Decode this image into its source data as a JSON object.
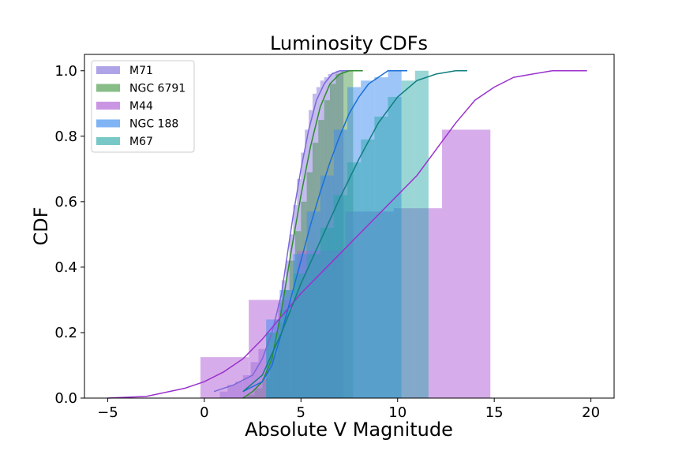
{
  "chart_data": {
    "type": "histogram",
    "title": "Luminosity CDFs",
    "xlabel": "Absolute V Magnitude",
    "ylabel": "CDF",
    "xlim": [
      -6.2,
      21.2
    ],
    "ylim": [
      0.0,
      1.05
    ],
    "xticks": [
      -5,
      0,
      5,
      10,
      15,
      20
    ],
    "yticks": [
      0.0,
      0.2,
      0.4,
      0.6,
      0.8,
      1.0
    ],
    "xtick_labels": [
      "−5",
      "0",
      "5",
      "10",
      "15",
      "20"
    ],
    "ytick_labels": [
      "0.0",
      "0.2",
      "0.4",
      "0.6",
      "0.8",
      "1.0"
    ],
    "grid": false,
    "legend_position": "top-left",
    "series": [
      {
        "name": "M71",
        "color": "#7b68d8",
        "bar_opacity": 0.45,
        "bin_edges": [
          0.8,
          1.2,
          1.6,
          2.0,
          2.4,
          2.8,
          3.2,
          3.6,
          3.8,
          4.0,
          4.2,
          4.4,
          4.6,
          4.8,
          5.0,
          5.2,
          5.4,
          5.6,
          5.8,
          6.0,
          6.2,
          6.4,
          6.6,
          6.8,
          7.0,
          7.2
        ],
        "cdf": [
          0.02,
          0.04,
          0.05,
          0.07,
          0.11,
          0.15,
          0.2,
          0.24,
          0.29,
          0.36,
          0.42,
          0.5,
          0.59,
          0.67,
          0.75,
          0.82,
          0.88,
          0.93,
          0.95,
          0.97,
          0.98,
          0.99,
          0.995,
          1.0,
          1.0
        ],
        "curve_x": [
          0.5,
          1.5,
          2.5,
          3.0,
          3.5,
          4.0,
          4.3,
          4.6,
          5.0,
          5.4,
          5.8,
          6.2,
          6.6,
          7.0,
          7.4,
          8.2
        ],
        "curve_y": [
          0.02,
          0.04,
          0.07,
          0.12,
          0.2,
          0.32,
          0.44,
          0.56,
          0.7,
          0.82,
          0.91,
          0.96,
          0.99,
          1.0,
          1.0,
          1.0
        ]
      },
      {
        "name": "NGC 6791",
        "color": "#2e8b2e",
        "bar_opacity": 0.42,
        "bin_edges": [
          2.2,
          2.6,
          3.0,
          3.4,
          3.8,
          4.1,
          4.4,
          4.7,
          5.0,
          5.3,
          5.6,
          5.9,
          6.2,
          6.5,
          6.8,
          7.1,
          7.4,
          7.7
        ],
        "cdf": [
          0.01,
          0.03,
          0.06,
          0.13,
          0.23,
          0.33,
          0.42,
          0.51,
          0.6,
          0.69,
          0.78,
          0.85,
          0.91,
          0.96,
          0.99,
          1.0,
          1.0
        ],
        "curve_x": [
          2.0,
          2.5,
          3.0,
          3.5,
          4.0,
          4.5,
          5.0,
          5.5,
          6.0,
          6.5,
          7.0,
          7.5,
          8.0,
          8.2
        ],
        "curve_y": [
          0.0,
          0.02,
          0.05,
          0.12,
          0.27,
          0.45,
          0.62,
          0.77,
          0.89,
          0.96,
          0.99,
          1.0,
          1.0,
          1.0
        ]
      },
      {
        "name": "M44",
        "color": "#b469d9",
        "curve_color": "#9a32cd",
        "bar_opacity": 0.55,
        "bin_edges": [
          -0.2,
          2.3,
          4.8,
          7.3,
          9.8,
          12.3,
          14.8
        ],
        "cdf": [
          0.125,
          0.3,
          0.45,
          0.57,
          0.58,
          0.82,
          1.0
        ],
        "curve_x": [
          -5.0,
          -3.0,
          -1.0,
          0.0,
          1.0,
          2.0,
          3.0,
          4.0,
          5.0,
          6.0,
          7.0,
          8.0,
          9.0,
          10.0,
          11.0,
          12.0,
          13.0,
          14.0,
          15.0,
          16.0,
          17.0,
          18.0,
          19.8
        ],
        "curve_y": [
          0.0,
          0.005,
          0.03,
          0.05,
          0.08,
          0.12,
          0.18,
          0.25,
          0.32,
          0.38,
          0.44,
          0.5,
          0.56,
          0.62,
          0.68,
          0.76,
          0.84,
          0.91,
          0.95,
          0.98,
          0.99,
          1.0,
          1.0
        ]
      },
      {
        "name": "NGC 188",
        "color": "#3c8cf0",
        "curve_color": "#1a6fd8",
        "bar_opacity": 0.5,
        "bin_edges": [
          3.2,
          3.9,
          4.6,
          5.3,
          6.0,
          6.7,
          7.4,
          8.1,
          8.8,
          9.5,
          10.2
        ],
        "cdf": [
          0.24,
          0.33,
          0.44,
          0.57,
          0.68,
          0.82,
          0.95,
          0.97,
          0.98,
          1.0
        ],
        "curve_x": [
          2.0,
          3.0,
          3.5,
          4.0,
          4.5,
          5.0,
          5.5,
          6.0,
          6.5,
          7.0,
          7.5,
          8.0,
          8.5,
          9.0,
          9.5,
          10.0,
          10.5
        ],
        "curve_y": [
          0.02,
          0.05,
          0.1,
          0.2,
          0.31,
          0.42,
          0.53,
          0.63,
          0.72,
          0.8,
          0.87,
          0.92,
          0.96,
          0.98,
          1.0,
          1.0,
          1.0
        ]
      },
      {
        "name": "M67",
        "color": "#20a3a3",
        "curve_color": "#0f7f7f",
        "bar_opacity": 0.45,
        "bin_edges": [
          3.2,
          3.9,
          4.6,
          5.3,
          6.0,
          6.7,
          7.4,
          8.1,
          8.8,
          9.5,
          10.2,
          10.9,
          11.6
        ],
        "cdf": [
          0.2,
          0.27,
          0.38,
          0.44,
          0.52,
          0.62,
          0.72,
          0.79,
          0.86,
          0.92,
          0.97,
          1.0
        ],
        "curve_x": [
          2.0,
          3.0,
          4.0,
          5.0,
          6.0,
          7.0,
          8.0,
          9.0,
          10.0,
          11.0,
          12.0,
          13.0,
          13.6
        ],
        "curve_y": [
          0.02,
          0.07,
          0.2,
          0.35,
          0.48,
          0.61,
          0.73,
          0.84,
          0.92,
          0.97,
          0.99,
          1.0,
          1.0
        ]
      }
    ]
  }
}
